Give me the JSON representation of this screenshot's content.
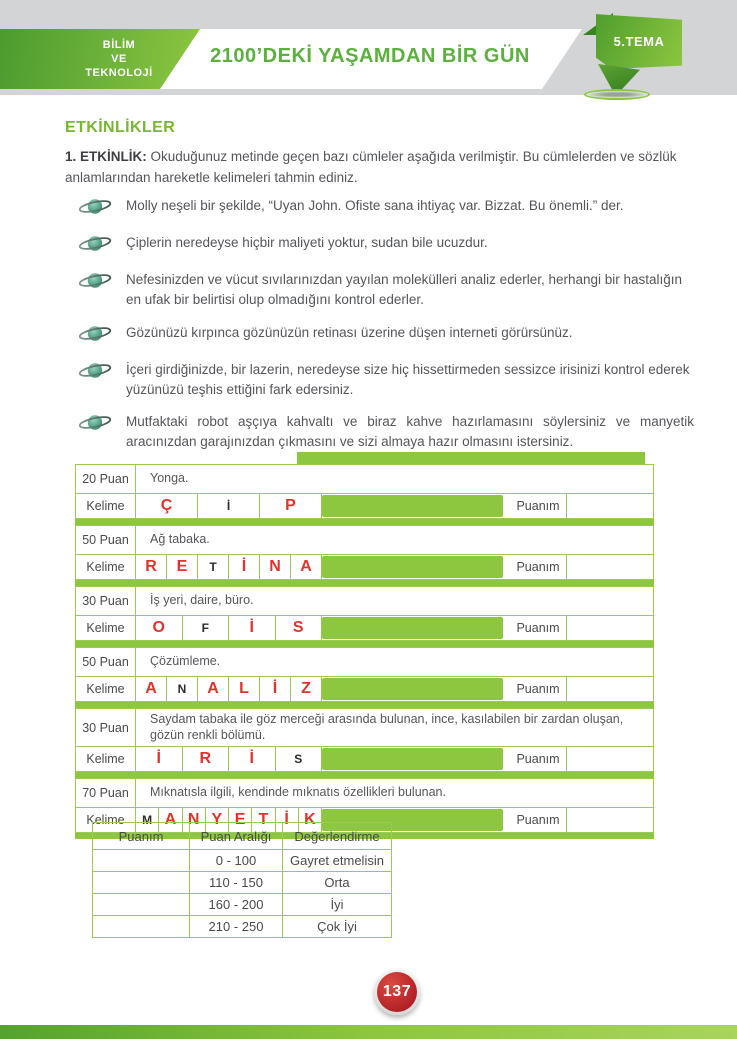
{
  "header": {
    "subject": [
      "BİLİM",
      "VE",
      "TEKNOLOJİ"
    ],
    "title": "2100’DEKİ YAŞAMDAN BİR GÜN",
    "theme": "5.TEMA"
  },
  "section_title": "ETKİNLİKLER",
  "activity": {
    "label": "1. ETKİNLİK:",
    "instruction": "Okuduğunuz metinde geçen bazı cümleler aşağıda verilmiştir. Bu cümlelerden ve sözlük anlamlarından hareketle kelimeleri tahmin ediniz."
  },
  "bullets": [
    "Molly neşeli bir şekilde, “Uyan John. Ofiste sana ihtiyaç var. Bizzat. Bu önemli.” der.",
    "Çiplerin neredeyse hiçbir maliyeti yoktur, sudan bile ucuzdur.",
    "Nefesinizden ve vücut sıvılarınızdan yayılan molekülleri analiz ederler, herhangi bir hastalığın en ufak bir belirtisi olup olmadığını kontrol ederler.",
    "Gözünüzü kırpınca gözünüzün retinası üzerine düşen interneti görürsünüz.",
    "İçeri girdiğinizde, bir lazerin, neredeyse size hiç hissettirmeden sessizce irisinizi kontrol ederek yüzünüzü teşhis ettiğini fark edersiniz.",
    "Mutfaktaki robot aşçıya kahvaltı ve biraz kahve hazırlamasını söylersiniz ve manyetik aracınızdan garajınızdan çıkmasını ve sizi almaya hazır olmasını istersiniz."
  ],
  "labels": {
    "kelime": "Kelime",
    "puanim": "Puanım"
  },
  "word_tables": [
    {
      "points": "20 Puan",
      "clue": "Yonga.",
      "letters": [
        {
          "ch": "Ç",
          "type": "answer"
        },
        {
          "ch": "İ",
          "type": "hint"
        },
        {
          "ch": "P",
          "type": "answer"
        }
      ]
    },
    {
      "points": "50 Puan",
      "clue": "Ağ tabaka.",
      "letters": [
        {
          "ch": "R",
          "type": "answer"
        },
        {
          "ch": "E",
          "type": "answer"
        },
        {
          "ch": "T",
          "type": "hint"
        },
        {
          "ch": "İ",
          "type": "answer"
        },
        {
          "ch": "N",
          "type": "answer"
        },
        {
          "ch": "A",
          "type": "answer"
        }
      ]
    },
    {
      "points": "30 Puan",
      "clue": "İş yeri, daire, büro.",
      "letters": [
        {
          "ch": "O",
          "type": "answer"
        },
        {
          "ch": "F",
          "type": "hint"
        },
        {
          "ch": "İ",
          "type": "answer"
        },
        {
          "ch": "S",
          "type": "answer"
        }
      ]
    },
    {
      "points": "50 Puan",
      "clue": "Çözümleme.",
      "letters": [
        {
          "ch": "A",
          "type": "answer"
        },
        {
          "ch": "N",
          "type": "hint"
        },
        {
          "ch": "A",
          "type": "answer"
        },
        {
          "ch": "L",
          "type": "answer"
        },
        {
          "ch": "İ",
          "type": "answer"
        },
        {
          "ch": "Z",
          "type": "answer"
        }
      ]
    },
    {
      "points": "30 Puan",
      "clue": "Saydam tabaka ile göz merceği arasında bulunan, ince, kasılabilen bir zardan oluşan, gözün renkli bölümü.",
      "letters": [
        {
          "ch": "İ",
          "type": "answer"
        },
        {
          "ch": "R",
          "type": "answer"
        },
        {
          "ch": "İ",
          "type": "answer"
        },
        {
          "ch": "S",
          "type": "hint"
        }
      ]
    },
    {
      "points": "70 Puan",
      "clue": "Mıknatısla ilgili, kendinde mıknatıs özellikleri bulunan.",
      "letters": [
        {
          "ch": "M",
          "type": "hint"
        },
        {
          "ch": "A",
          "type": "answer"
        },
        {
          "ch": "N",
          "type": "answer"
        },
        {
          "ch": "Y",
          "type": "answer"
        },
        {
          "ch": "E",
          "type": "answer"
        },
        {
          "ch": "T",
          "type": "answer"
        },
        {
          "ch": "İ",
          "type": "answer"
        },
        {
          "ch": "K",
          "type": "answer"
        }
      ]
    }
  ],
  "score_table": {
    "headers": [
      "Puanım",
      "Puan Aralığı",
      "Değerlendirme"
    ],
    "rows": [
      [
        "",
        "0 - 100",
        "Gayret etmelisin"
      ],
      [
        "",
        "110 - 150",
        "Orta"
      ],
      [
        "",
        "160 - 200",
        "İyi"
      ],
      [
        "",
        "210 - 250",
        "Çok İyi"
      ]
    ]
  },
  "page_number": "137",
  "colors": {
    "accent_green": "#8dc63f",
    "dark_green": "#4c9b2f",
    "title_green": "#5bb03e",
    "border_green": "#9cca52",
    "answer_red": "#e0332b",
    "badge_red": "#b01f24",
    "band_gray": "#d3d4d6"
  }
}
